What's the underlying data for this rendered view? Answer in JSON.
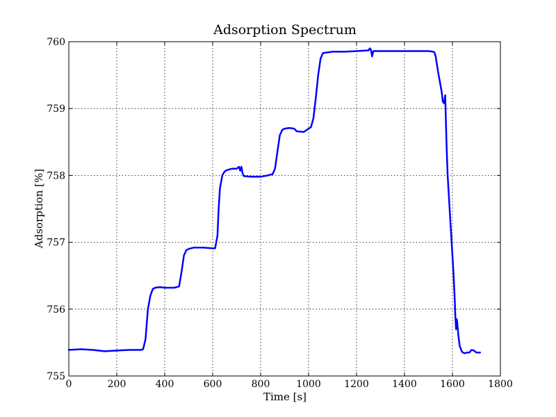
{
  "chart_data": {
    "type": "line",
    "title": "Adsorption Spectrum",
    "xlabel": "Time [s]",
    "ylabel": "Adsorption [%]",
    "xlim": [
      0,
      1800
    ],
    "ylim": [
      755,
      760
    ],
    "xticks": [
      0,
      200,
      400,
      600,
      800,
      1000,
      1200,
      1400,
      1600,
      1800
    ],
    "yticks": [
      755,
      756,
      757,
      758,
      759,
      760
    ],
    "grid": true,
    "color": "#0000ff",
    "series": [
      {
        "x": [
          0,
          50,
          100,
          150,
          200,
          250,
          300,
          310,
          320,
          330,
          340,
          350,
          360,
          380,
          400,
          440,
          460,
          470,
          480,
          490,
          500,
          520,
          540,
          560,
          600,
          610,
          620,
          625,
          630,
          640,
          650,
          660,
          680,
          700,
          710,
          715,
          720,
          725,
          730,
          760,
          800,
          830,
          850,
          860,
          870,
          880,
          890,
          900,
          920,
          940,
          950,
          980,
          1000,
          1010,
          1020,
          1030,
          1040,
          1050,
          1060,
          1080,
          1100,
          1150,
          1200,
          1250,
          1255,
          1260,
          1265,
          1270,
          1300,
          1400,
          1450,
          1500,
          1520,
          1525,
          1530,
          1540,
          1550,
          1555,
          1560,
          1565,
          1570,
          1575,
          1580,
          1590,
          1600,
          1605,
          1610,
          1612,
          1615,
          1618,
          1620,
          1625,
          1630,
          1640,
          1650,
          1660,
          1670,
          1680,
          1690,
          1700,
          1710,
          1715
        ],
        "y": [
          755.39,
          755.4,
          755.39,
          755.37,
          755.38,
          755.39,
          755.39,
          755.4,
          755.55,
          756.0,
          756.2,
          756.3,
          756.32,
          756.33,
          756.32,
          756.32,
          756.34,
          756.55,
          756.8,
          756.88,
          756.9,
          756.92,
          756.92,
          756.92,
          756.91,
          756.91,
          757.1,
          757.5,
          757.8,
          758.0,
          758.06,
          758.08,
          758.1,
          758.1,
          758.13,
          758.07,
          758.13,
          758.03,
          757.99,
          757.98,
          757.98,
          758.0,
          758.02,
          758.1,
          758.35,
          758.6,
          758.68,
          758.7,
          758.71,
          758.7,
          758.66,
          758.65,
          758.7,
          758.72,
          758.85,
          759.15,
          759.5,
          759.75,
          759.83,
          759.84,
          759.85,
          759.85,
          759.86,
          759.87,
          759.9,
          759.88,
          759.78,
          759.86,
          759.86,
          759.86,
          759.86,
          759.86,
          759.85,
          759.84,
          759.78,
          759.55,
          759.35,
          759.25,
          759.1,
          759.08,
          759.2,
          758.5,
          758.0,
          757.4,
          756.8,
          756.5,
          756.1,
          755.9,
          755.7,
          755.85,
          755.8,
          755.6,
          755.45,
          755.36,
          755.34,
          755.35,
          755.35,
          755.39,
          755.38,
          755.35,
          755.35,
          755.35
        ]
      }
    ]
  }
}
